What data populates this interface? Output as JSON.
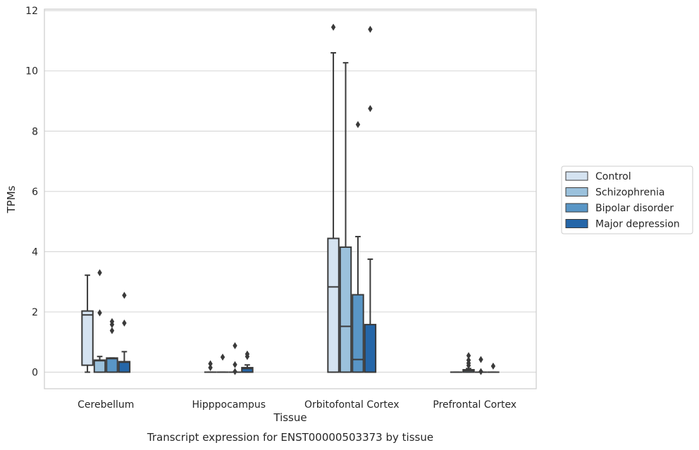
{
  "chart_data": {
    "type": "box",
    "title": "Transcript expression for ENST00000503373 by tissue",
    "xlabel": "Tissue",
    "ylabel": "TPMs",
    "ylim": [
      -0.55,
      12.05
    ],
    "yticks": [
      "0",
      "2",
      "4",
      "6",
      "8",
      "10",
      "12"
    ],
    "grid": "horizontal",
    "legend_position": "right",
    "categories": [
      "Cerebellum",
      "Hipppocampus",
      "Orbitofontal Cortex",
      "Prefrontal Cortex"
    ],
    "series": [
      {
        "name": "Control",
        "color": "#d5e3f1",
        "boxes": [
          {
            "q1": 0.23,
            "median": 1.9,
            "q3": 2.03,
            "whislo": 0.0,
            "whishi": 3.22,
            "fliers": []
          },
          {
            "q1": 0.0,
            "median": 0.0,
            "q3": 0.0,
            "whislo": 0.0,
            "whishi": 0.0,
            "fliers": [
              0.15,
              0.28
            ]
          },
          {
            "q1": 0.0,
            "median": 2.83,
            "q3": 4.44,
            "whislo": 0.0,
            "whishi": 10.6,
            "fliers": [
              11.45
            ]
          },
          {
            "q1": 0.0,
            "median": 0.0,
            "q3": 0.0,
            "whislo": 0.0,
            "whishi": 0.0,
            "fliers": []
          }
        ]
      },
      {
        "name": "Schizophrenia",
        "color": "#9bc1dc",
        "boxes": [
          {
            "q1": 0.0,
            "median": 0.38,
            "q3": 0.4,
            "whislo": 0.0,
            "whishi": 0.52,
            "fliers": [
              1.97,
              3.3
            ]
          },
          {
            "q1": 0.0,
            "median": 0.0,
            "q3": 0.0,
            "whislo": 0.0,
            "whishi": 0.0,
            "fliers": [
              0.5
            ]
          },
          {
            "q1": 0.0,
            "median": 1.52,
            "q3": 4.15,
            "whislo": 0.0,
            "whishi": 10.27,
            "fliers": []
          },
          {
            "q1": 0.0,
            "median": 0.05,
            "q3": 0.08,
            "whislo": 0.0,
            "whishi": 0.12,
            "fliers": [
              0.22,
              0.3,
              0.4,
              0.55
            ]
          }
        ]
      },
      {
        "name": "Bipolar disorder",
        "color": "#5996c6",
        "boxes": [
          {
            "q1": 0.0,
            "median": 0.45,
            "q3": 0.47,
            "whislo": 0.0,
            "whishi": 0.47,
            "fliers": [
              1.38,
              1.58,
              1.68
            ]
          },
          {
            "q1": 0.0,
            "median": 0.0,
            "q3": 0.0,
            "whislo": 0.0,
            "whishi": 0.0,
            "fliers": [
              0.02,
              0.25,
              0.88
            ]
          },
          {
            "q1": 0.0,
            "median": 0.42,
            "q3": 2.57,
            "whislo": 0.0,
            "whishi": 4.5,
            "fliers": [
              8.22
            ]
          },
          {
            "q1": 0.0,
            "median": 0.0,
            "q3": 0.0,
            "whislo": 0.0,
            "whishi": 0.0,
            "fliers": [
              0.02,
              0.42
            ]
          }
        ]
      },
      {
        "name": "Major depression",
        "color": "#2566a8",
        "boxes": [
          {
            "q1": 0.0,
            "median": 0.33,
            "q3": 0.35,
            "whislo": 0.0,
            "whishi": 0.68,
            "fliers": [
              1.63,
              2.55
            ]
          },
          {
            "q1": 0.0,
            "median": 0.12,
            "q3": 0.15,
            "whislo": 0.0,
            "whishi": 0.24,
            "fliers": [
              0.52,
              0.6
            ]
          },
          {
            "q1": 0.0,
            "median": 0.0,
            "q3": 1.58,
            "whislo": 0.0,
            "whishi": 3.75,
            "fliers": [
              8.75,
              11.38
            ]
          },
          {
            "q1": 0.0,
            "median": 0.0,
            "q3": 0.0,
            "whislo": 0.0,
            "whishi": 0.0,
            "fliers": [
              0.2
            ]
          }
        ]
      }
    ]
  }
}
